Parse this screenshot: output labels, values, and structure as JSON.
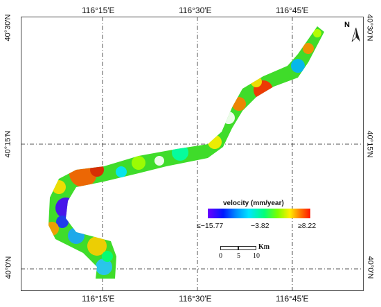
{
  "graticule": {
    "top_labels": [
      "116°15′E",
      "116°30′E",
      "116°45′E"
    ],
    "bottom_labels": [
      "116°15′E",
      "116°30′E",
      "116°45′E"
    ],
    "left_labels": [
      "40°30′N",
      "40°15′N",
      "40°0′N"
    ],
    "right_labels": [
      "40°30′N",
      "40°15′N",
      "40°0′N"
    ]
  },
  "legend": {
    "title": "velocity (mm/year)",
    "min_label": "≤−15.77",
    "mid_label": "−3.82",
    "max_label": "≥8.22",
    "colors": [
      "#6a00ff",
      "#0018ff",
      "#00e5ff",
      "#00ff7a",
      "#7aff00",
      "#ffee00",
      "#ff7a00",
      "#ff1400"
    ]
  },
  "scale": {
    "unit": "Km",
    "ticks": [
      "0",
      "5",
      "10"
    ]
  },
  "north_arrow": {
    "label": "N",
    "icon": "north-arrow-icon"
  }
}
